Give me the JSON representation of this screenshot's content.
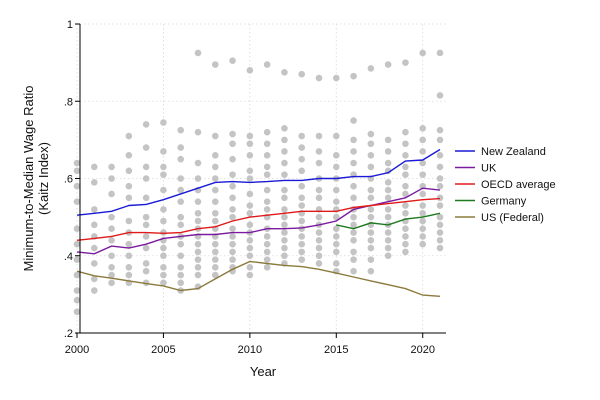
{
  "chart_data": {
    "type": "line",
    "title": "",
    "xlabel": "Year",
    "ylabel": "Minimum-to-Median Wage Ratio",
    "ylabel_sub": "(Kaitz Index)",
    "xlim": [
      2000,
      2021
    ],
    "ylim": [
      0.2,
      1.0
    ],
    "xticks": [
      2000,
      2005,
      2010,
      2015,
      2020
    ],
    "yticks": [
      0.2,
      0.4,
      0.6,
      0.8,
      1.0
    ],
    "ytick_labels": [
      ".2",
      ".4",
      ".6",
      ".8",
      "1"
    ],
    "grid": true,
    "legend_position": "right",
    "colors": {
      "scatter": "#c4c4c4",
      "new_zealand": "#1a1ad6",
      "uk": "#7a1a9e",
      "oecd": "#e01a1a",
      "germany": "#1e7a1e",
      "us": "#8c7a3c"
    },
    "series": [
      {
        "name": "New Zealand",
        "color_key": "new_zealand",
        "x": [
          2000,
          2001,
          2002,
          2003,
          2004,
          2005,
          2006,
          2007,
          2008,
          2009,
          2010,
          2011,
          2012,
          2013,
          2014,
          2015,
          2016,
          2017,
          2018,
          2019,
          2020,
          2021
        ],
        "values": [
          0.505,
          0.51,
          0.515,
          0.53,
          0.533,
          0.545,
          0.56,
          0.575,
          0.59,
          0.592,
          0.59,
          0.592,
          0.595,
          0.595,
          0.6,
          0.6,
          0.605,
          0.605,
          0.615,
          0.645,
          0.648,
          0.675
        ]
      },
      {
        "name": "UK",
        "color_key": "uk",
        "x": [
          2000,
          2001,
          2002,
          2003,
          2004,
          2005,
          2006,
          2007,
          2008,
          2009,
          2010,
          2011,
          2012,
          2013,
          2014,
          2015,
          2016,
          2017,
          2018,
          2019,
          2020,
          2021
        ],
        "values": [
          0.41,
          0.405,
          0.425,
          0.42,
          0.43,
          0.445,
          0.45,
          0.455,
          0.455,
          0.46,
          0.46,
          0.47,
          0.47,
          0.472,
          0.48,
          0.49,
          0.52,
          0.53,
          0.54,
          0.55,
          0.575,
          0.57
        ]
      },
      {
        "name": "OECD average",
        "color_key": "oecd",
        "x": [
          2000,
          2001,
          2002,
          2003,
          2004,
          2005,
          2006,
          2007,
          2008,
          2009,
          2010,
          2011,
          2012,
          2013,
          2014,
          2015,
          2016,
          2017,
          2018,
          2019,
          2020,
          2021
        ],
        "values": [
          0.44,
          0.445,
          0.45,
          0.46,
          0.46,
          0.458,
          0.46,
          0.47,
          0.475,
          0.49,
          0.5,
          0.505,
          0.51,
          0.515,
          0.515,
          0.515,
          0.525,
          0.53,
          0.535,
          0.54,
          0.545,
          0.548
        ]
      },
      {
        "name": "Germany",
        "color_key": "germany",
        "x": [
          2015,
          2016,
          2017,
          2018,
          2019,
          2020,
          2021
        ],
        "values": [
          0.48,
          0.47,
          0.485,
          0.48,
          0.495,
          0.5,
          0.51
        ]
      },
      {
        "name": "US (Federal)",
        "color_key": "us",
        "x": [
          2000,
          2001,
          2002,
          2003,
          2004,
          2005,
          2006,
          2007,
          2008,
          2009,
          2010,
          2011,
          2012,
          2013,
          2014,
          2015,
          2016,
          2017,
          2018,
          2019,
          2020,
          2021
        ],
        "values": [
          0.36,
          0.348,
          0.342,
          0.335,
          0.328,
          0.322,
          0.31,
          0.315,
          0.34,
          0.365,
          0.385,
          0.38,
          0.375,
          0.372,
          0.365,
          0.355,
          0.345,
          0.335,
          0.325,
          0.315,
          0.298,
          0.295
        ]
      }
    ],
    "scatter_points": [
      [
        2007,
        0.925
      ],
      [
        2008,
        0.895
      ],
      [
        2009,
        0.905
      ],
      [
        2010,
        0.88
      ],
      [
        2011,
        0.895
      ],
      [
        2012,
        0.875
      ],
      [
        2013,
        0.87
      ],
      [
        2014,
        0.86
      ],
      [
        2015,
        0.86
      ],
      [
        2016,
        0.865
      ],
      [
        2017,
        0.885
      ],
      [
        2018,
        0.895
      ],
      [
        2019,
        0.9
      ],
      [
        2020,
        0.925
      ],
      [
        2021,
        0.925
      ],
      [
        2021,
        0.815
      ],
      [
        2000,
        0.64
      ],
      [
        2000,
        0.62
      ],
      [
        2000,
        0.58
      ],
      [
        2000,
        0.54
      ],
      [
        2000,
        0.47
      ],
      [
        2000,
        0.43
      ],
      [
        2000,
        0.39
      ],
      [
        2000,
        0.35
      ],
      [
        2000,
        0.31
      ],
      [
        2000,
        0.285
      ],
      [
        2000,
        0.255
      ],
      [
        2001,
        0.63
      ],
      [
        2001,
        0.59
      ],
      [
        2001,
        0.52
      ],
      [
        2001,
        0.48
      ],
      [
        2001,
        0.45
      ],
      [
        2001,
        0.42
      ],
      [
        2001,
        0.38
      ],
      [
        2001,
        0.34
      ],
      [
        2001,
        0.31
      ],
      [
        2002,
        0.63
      ],
      [
        2002,
        0.6
      ],
      [
        2002,
        0.56
      ],
      [
        2002,
        0.5
      ],
      [
        2002,
        0.47
      ],
      [
        2002,
        0.44
      ],
      [
        2002,
        0.4
      ],
      [
        2002,
        0.37
      ],
      [
        2002,
        0.35
      ],
      [
        2002,
        0.33
      ],
      [
        2003,
        0.71
      ],
      [
        2003,
        0.66
      ],
      [
        2003,
        0.62
      ],
      [
        2003,
        0.58
      ],
      [
        2003,
        0.55
      ],
      [
        2003,
        0.49
      ],
      [
        2003,
        0.46
      ],
      [
        2003,
        0.43
      ],
      [
        2003,
        0.4
      ],
      [
        2003,
        0.37
      ],
      [
        2003,
        0.35
      ],
      [
        2003,
        0.33
      ],
      [
        2004,
        0.74
      ],
      [
        2004,
        0.68
      ],
      [
        2004,
        0.63
      ],
      [
        2004,
        0.6
      ],
      [
        2004,
        0.55
      ],
      [
        2004,
        0.5
      ],
      [
        2004,
        0.48
      ],
      [
        2004,
        0.45
      ],
      [
        2004,
        0.42
      ],
      [
        2004,
        0.38
      ],
      [
        2004,
        0.36
      ],
      [
        2004,
        0.33
      ],
      [
        2005,
        0.745
      ],
      [
        2005,
        0.67
      ],
      [
        2005,
        0.63
      ],
      [
        2005,
        0.61
      ],
      [
        2005,
        0.57
      ],
      [
        2005,
        0.52
      ],
      [
        2005,
        0.49
      ],
      [
        2005,
        0.46
      ],
      [
        2005,
        0.44
      ],
      [
        2005,
        0.42
      ],
      [
        2005,
        0.4
      ],
      [
        2005,
        0.37
      ],
      [
        2005,
        0.35
      ],
      [
        2005,
        0.33
      ],
      [
        2006,
        0.725
      ],
      [
        2006,
        0.68
      ],
      [
        2006,
        0.65
      ],
      [
        2006,
        0.6
      ],
      [
        2006,
        0.57
      ],
      [
        2006,
        0.54
      ],
      [
        2006,
        0.5
      ],
      [
        2006,
        0.48
      ],
      [
        2006,
        0.45
      ],
      [
        2006,
        0.43
      ],
      [
        2006,
        0.4
      ],
      [
        2006,
        0.37
      ],
      [
        2006,
        0.35
      ],
      [
        2006,
        0.33
      ],
      [
        2006,
        0.31
      ],
      [
        2007,
        0.72
      ],
      [
        2007,
        0.64
      ],
      [
        2007,
        0.6
      ],
      [
        2007,
        0.57
      ],
      [
        2007,
        0.54
      ],
      [
        2007,
        0.51
      ],
      [
        2007,
        0.49
      ],
      [
        2007,
        0.47
      ],
      [
        2007,
        0.45
      ],
      [
        2007,
        0.43
      ],
      [
        2007,
        0.41
      ],
      [
        2007,
        0.39
      ],
      [
        2007,
        0.37
      ],
      [
        2007,
        0.35
      ],
      [
        2007,
        0.32
      ],
      [
        2008,
        0.71
      ],
      [
        2008,
        0.66
      ],
      [
        2008,
        0.63
      ],
      [
        2008,
        0.6
      ],
      [
        2008,
        0.57
      ],
      [
        2008,
        0.54
      ],
      [
        2008,
        0.51
      ],
      [
        2008,
        0.49
      ],
      [
        2008,
        0.47
      ],
      [
        2008,
        0.45
      ],
      [
        2008,
        0.43
      ],
      [
        2008,
        0.41
      ],
      [
        2008,
        0.39
      ],
      [
        2008,
        0.37
      ],
      [
        2008,
        0.35
      ],
      [
        2009,
        0.715
      ],
      [
        2009,
        0.69
      ],
      [
        2009,
        0.65
      ],
      [
        2009,
        0.61
      ],
      [
        2009,
        0.58
      ],
      [
        2009,
        0.55
      ],
      [
        2009,
        0.52
      ],
      [
        2009,
        0.5
      ],
      [
        2009,
        0.47
      ],
      [
        2009,
        0.45
      ],
      [
        2009,
        0.43
      ],
      [
        2009,
        0.41
      ],
      [
        2009,
        0.39
      ],
      [
        2009,
        0.37
      ],
      [
        2009,
        0.36
      ],
      [
        2010,
        0.71
      ],
      [
        2010,
        0.69
      ],
      [
        2010,
        0.66
      ],
      [
        2010,
        0.62
      ],
      [
        2010,
        0.6
      ],
      [
        2010,
        0.56
      ],
      [
        2010,
        0.53
      ],
      [
        2010,
        0.51
      ],
      [
        2010,
        0.48
      ],
      [
        2010,
        0.46
      ],
      [
        2010,
        0.44
      ],
      [
        2010,
        0.42
      ],
      [
        2010,
        0.4
      ],
      [
        2010,
        0.37
      ],
      [
        2010,
        0.35
      ],
      [
        2011,
        0.72
      ],
      [
        2011,
        0.69
      ],
      [
        2011,
        0.66
      ],
      [
        2011,
        0.63
      ],
      [
        2011,
        0.61
      ],
      [
        2011,
        0.57
      ],
      [
        2011,
        0.54
      ],
      [
        2011,
        0.52
      ],
      [
        2011,
        0.5
      ],
      [
        2011,
        0.47
      ],
      [
        2011,
        0.45
      ],
      [
        2011,
        0.43
      ],
      [
        2011,
        0.41
      ],
      [
        2011,
        0.39
      ],
      [
        2011,
        0.37
      ],
      [
        2012,
        0.73
      ],
      [
        2012,
        0.7
      ],
      [
        2012,
        0.67
      ],
      [
        2012,
        0.64
      ],
      [
        2012,
        0.61
      ],
      [
        2012,
        0.57
      ],
      [
        2012,
        0.55
      ],
      [
        2012,
        0.52
      ],
      [
        2012,
        0.5
      ],
      [
        2012,
        0.48
      ],
      [
        2012,
        0.46
      ],
      [
        2012,
        0.44
      ],
      [
        2012,
        0.42
      ],
      [
        2012,
        0.4
      ],
      [
        2012,
        0.38
      ],
      [
        2013,
        0.71
      ],
      [
        2013,
        0.68
      ],
      [
        2013,
        0.65
      ],
      [
        2013,
        0.62
      ],
      [
        2013,
        0.58
      ],
      [
        2013,
        0.55
      ],
      [
        2013,
        0.53
      ],
      [
        2013,
        0.51
      ],
      [
        2013,
        0.49
      ],
      [
        2013,
        0.47
      ],
      [
        2013,
        0.45
      ],
      [
        2013,
        0.43
      ],
      [
        2013,
        0.41
      ],
      [
        2013,
        0.39
      ],
      [
        2014,
        0.71
      ],
      [
        2014,
        0.67
      ],
      [
        2014,
        0.64
      ],
      [
        2014,
        0.6
      ],
      [
        2014,
        0.57
      ],
      [
        2014,
        0.55
      ],
      [
        2014,
        0.52
      ],
      [
        2014,
        0.5
      ],
      [
        2014,
        0.48
      ],
      [
        2014,
        0.46
      ],
      [
        2014,
        0.44
      ],
      [
        2014,
        0.42
      ],
      [
        2014,
        0.4
      ],
      [
        2014,
        0.38
      ],
      [
        2015,
        0.71
      ],
      [
        2015,
        0.66
      ],
      [
        2015,
        0.63
      ],
      [
        2015,
        0.6
      ],
      [
        2015,
        0.57
      ],
      [
        2015,
        0.54
      ],
      [
        2015,
        0.52
      ],
      [
        2015,
        0.5
      ],
      [
        2015,
        0.47
      ],
      [
        2015,
        0.45
      ],
      [
        2015,
        0.43
      ],
      [
        2015,
        0.41
      ],
      [
        2015,
        0.38
      ],
      [
        2015,
        0.36
      ],
      [
        2016,
        0.75
      ],
      [
        2016,
        0.7
      ],
      [
        2016,
        0.67
      ],
      [
        2016,
        0.64
      ],
      [
        2016,
        0.61
      ],
      [
        2016,
        0.58
      ],
      [
        2016,
        0.55
      ],
      [
        2016,
        0.52
      ],
      [
        2016,
        0.5
      ],
      [
        2016,
        0.48
      ],
      [
        2016,
        0.46
      ],
      [
        2016,
        0.44
      ],
      [
        2016,
        0.41
      ],
      [
        2016,
        0.39
      ],
      [
        2016,
        0.36
      ],
      [
        2017,
        0.715
      ],
      [
        2017,
        0.69
      ],
      [
        2017,
        0.66
      ],
      [
        2017,
        0.63
      ],
      [
        2017,
        0.6
      ],
      [
        2017,
        0.57
      ],
      [
        2017,
        0.55
      ],
      [
        2017,
        0.52
      ],
      [
        2017,
        0.5
      ],
      [
        2017,
        0.48
      ],
      [
        2017,
        0.46
      ],
      [
        2017,
        0.44
      ],
      [
        2017,
        0.42
      ],
      [
        2017,
        0.39
      ],
      [
        2017,
        0.36
      ],
      [
        2018,
        0.7
      ],
      [
        2018,
        0.67
      ],
      [
        2018,
        0.64
      ],
      [
        2018,
        0.62
      ],
      [
        2018,
        0.59
      ],
      [
        2018,
        0.57
      ],
      [
        2018,
        0.55
      ],
      [
        2018,
        0.52
      ],
      [
        2018,
        0.5
      ],
      [
        2018,
        0.48
      ],
      [
        2018,
        0.46
      ],
      [
        2018,
        0.44
      ],
      [
        2018,
        0.42
      ],
      [
        2018,
        0.4
      ],
      [
        2019,
        0.72
      ],
      [
        2019,
        0.69
      ],
      [
        2019,
        0.66
      ],
      [
        2019,
        0.63
      ],
      [
        2019,
        0.61
      ],
      [
        2019,
        0.58
      ],
      [
        2019,
        0.56
      ],
      [
        2019,
        0.53
      ],
      [
        2019,
        0.51
      ],
      [
        2019,
        0.49
      ],
      [
        2019,
        0.47
      ],
      [
        2019,
        0.45
      ],
      [
        2019,
        0.43
      ],
      [
        2019,
        0.41
      ],
      [
        2020,
        0.73
      ],
      [
        2020,
        0.7
      ],
      [
        2020,
        0.67
      ],
      [
        2020,
        0.64
      ],
      [
        2020,
        0.61
      ],
      [
        2020,
        0.58
      ],
      [
        2020,
        0.56
      ],
      [
        2020,
        0.53
      ],
      [
        2020,
        0.51
      ],
      [
        2020,
        0.49
      ],
      [
        2020,
        0.47
      ],
      [
        2020,
        0.45
      ],
      [
        2020,
        0.43
      ],
      [
        2021,
        0.725
      ],
      [
        2021,
        0.7
      ],
      [
        2021,
        0.66
      ],
      [
        2021,
        0.63
      ],
      [
        2021,
        0.6
      ],
      [
        2021,
        0.58
      ],
      [
        2021,
        0.55
      ],
      [
        2021,
        0.53
      ],
      [
        2021,
        0.5
      ],
      [
        2021,
        0.48
      ],
      [
        2021,
        0.46
      ],
      [
        2021,
        0.44
      ],
      [
        2021,
        0.42
      ]
    ]
  }
}
